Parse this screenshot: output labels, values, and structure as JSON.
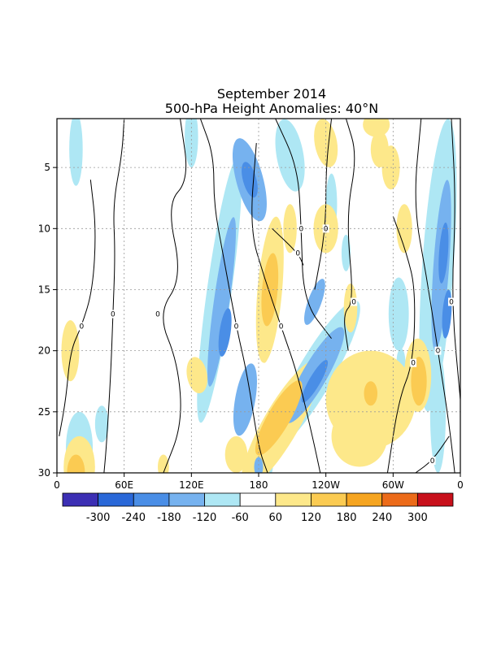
{
  "chart_data": {
    "type": "heatmap",
    "title": "September 2014",
    "subtitle": "500-hPa Height Anomalies: 40°N",
    "xlabel": "",
    "ylabel": "",
    "x_ticks": [
      "0",
      "60E",
      "120E",
      "180",
      "120W",
      "60W",
      "0"
    ],
    "x_range": [
      0,
      360
    ],
    "y_ticks": [
      "5",
      "10",
      "15",
      "20",
      "25",
      "30"
    ],
    "y_range": [
      1,
      30
    ],
    "y_reversed": true,
    "grid": true,
    "contour_label": "0",
    "colorbar": {
      "labels": [
        "-300",
        "-240",
        "-180",
        "-120",
        "-60",
        "60",
        "120",
        "180",
        "240",
        "300"
      ],
      "colors": [
        "#3c2fb4",
        "#2a68d8",
        "#4a8ee6",
        "#76b2ef",
        "#aee7f4",
        "#ffffff",
        "#fde88a",
        "#fbcb52",
        "#f6a521",
        "#ec6b19",
        "#c8101b"
      ]
    },
    "anomaly_blobs": [
      {
        "lon": 17,
        "day": 3.5,
        "rlon": 6,
        "rday": 3,
        "rot": 0,
        "v": -60
      },
      {
        "lon": 120,
        "day": 2.5,
        "rlon": 6,
        "rday": 2.5,
        "rot": 0,
        "v": -60
      },
      {
        "lon": 172,
        "day": 6,
        "rlon": 12,
        "rday": 3.5,
        "rot": -15,
        "v": -120
      },
      {
        "lon": 172,
        "day": 6,
        "rlon": 6,
        "rday": 1.5,
        "rot": -15,
        "v": -180
      },
      {
        "lon": 145,
        "day": 15,
        "rlon": 11,
        "rday": 11,
        "rot": 8,
        "v": -60
      },
      {
        "lon": 147,
        "day": 16,
        "rlon": 7,
        "rday": 7,
        "rot": 8,
        "v": -120
      },
      {
        "lon": 150,
        "day": 18.5,
        "rlon": 5,
        "rday": 2,
        "rot": 8,
        "v": -180
      },
      {
        "lon": 168,
        "day": 24,
        "rlon": 9,
        "rday": 3,
        "rot": 10,
        "v": -120
      },
      {
        "lon": 208,
        "day": 4,
        "rlon": 12,
        "rday": 3,
        "rot": -10,
        "v": -60
      },
      {
        "lon": 230,
        "day": 22,
        "rlon": 16,
        "rday": 7,
        "rot": 30,
        "v": -60
      },
      {
        "lon": 230,
        "day": 22,
        "rlon": 11,
        "rday": 4.5,
        "rot": 30,
        "v": -120
      },
      {
        "lon": 230,
        "day": 22.5,
        "rlon": 5,
        "rday": 2,
        "rot": 30,
        "v": -180
      },
      {
        "lon": 230,
        "day": 16,
        "rlon": 6,
        "rday": 2,
        "rot": 20,
        "v": -120
      },
      {
        "lon": 260,
        "day": 18,
        "rlon": 5,
        "rday": 1.5,
        "rot": 0,
        "v": -60
      },
      {
        "lon": 258,
        "day": 12,
        "rlon": 4,
        "rday": 1.5,
        "rot": 0,
        "v": -60
      },
      {
        "lon": 245,
        "day": 8,
        "rlon": 5,
        "rday": 2.5,
        "rot": 0,
        "v": -60
      },
      {
        "lon": 305,
        "day": 17,
        "rlon": 9,
        "rday": 3,
        "rot": 0,
        "v": -60
      },
      {
        "lon": 307,
        "day": 21,
        "rlon": 4,
        "rday": 1.2,
        "rot": 0,
        "v": -60
      },
      {
        "lon": 340,
        "day": 13,
        "rlon": 14,
        "rday": 12,
        "rot": 4,
        "v": -60
      },
      {
        "lon": 343,
        "day": 13,
        "rlon": 7,
        "rday": 7,
        "rot": 4,
        "v": -120
      },
      {
        "lon": 345,
        "day": 12,
        "rlon": 4,
        "rday": 2.5,
        "rot": 4,
        "v": -180
      },
      {
        "lon": 348,
        "day": 17,
        "rlon": 4,
        "rday": 2,
        "rot": 4,
        "v": -180
      },
      {
        "lon": 340,
        "day": 25,
        "rlon": 7,
        "rday": 5,
        "rot": 0,
        "v": -60
      },
      {
        "lon": 20,
        "day": 28,
        "rlon": 12,
        "rday": 3,
        "rot": 0,
        "v": -60
      },
      {
        "lon": 40,
        "day": 26,
        "rlon": 6,
        "rday": 1.5,
        "rot": 0,
        "v": -60
      },
      {
        "lon": 185,
        "day": 29.2,
        "rlon": 8,
        "rday": 1.5,
        "rot": 0,
        "v": -60
      },
      {
        "lon": 180,
        "day": 29.5,
        "rlon": 4,
        "rday": 0.8,
        "rot": 0,
        "v": -120
      },
      {
        "lon": 240,
        "day": 3,
        "rlon": 10,
        "rday": 2,
        "rot": -10,
        "v": 60
      },
      {
        "lon": 208,
        "day": 10,
        "rlon": 6,
        "rday": 2,
        "rot": 0,
        "v": 60
      },
      {
        "lon": 285,
        "day": 1.5,
        "rlon": 12,
        "rday": 1,
        "rot": 0,
        "v": 60
      },
      {
        "lon": 298,
        "day": 5,
        "rlon": 8,
        "rday": 1.8,
        "rot": 0,
        "v": 60
      },
      {
        "lon": 288,
        "day": 3.5,
        "rlon": 8,
        "rday": 1.5,
        "rot": 0,
        "v": 60
      },
      {
        "lon": 310,
        "day": 10,
        "rlon": 7,
        "rday": 2,
        "rot": 0,
        "v": 60
      },
      {
        "lon": 190,
        "day": 15,
        "rlon": 11,
        "rday": 6,
        "rot": 5,
        "v": 60
      },
      {
        "lon": 190,
        "day": 15,
        "rlon": 7,
        "rday": 3,
        "rot": 5,
        "v": 120
      },
      {
        "lon": 240,
        "day": 10,
        "rlon": 11,
        "rday": 2,
        "rot": 0,
        "v": 60
      },
      {
        "lon": 262,
        "day": 16.5,
        "rlon": 6,
        "rday": 2,
        "rot": 0,
        "v": 60
      },
      {
        "lon": 12,
        "day": 20,
        "rlon": 8,
        "rday": 2.5,
        "rot": 0,
        "v": 60
      },
      {
        "lon": 125,
        "day": 22,
        "rlon": 9,
        "rday": 1.5,
        "rot": -10,
        "v": 60
      },
      {
        "lon": 200,
        "day": 26,
        "rlon": 16,
        "rday": 6,
        "rot": 30,
        "v": 60
      },
      {
        "lon": 198,
        "day": 25.5,
        "rlon": 10,
        "rday": 3.5,
        "rot": 30,
        "v": 120
      },
      {
        "lon": 185,
        "day": 20,
        "rlon": 4,
        "rday": 1,
        "rot": 0,
        "v": 60
      },
      {
        "lon": 160,
        "day": 28.5,
        "rlon": 10,
        "rday": 1.5,
        "rot": 0,
        "v": 60
      },
      {
        "lon": 95,
        "day": 29.5,
        "rlon": 5,
        "rday": 1,
        "rot": 0,
        "v": 60
      },
      {
        "lon": 20,
        "day": 29.5,
        "rlon": 14,
        "rday": 2.5,
        "rot": 0,
        "v": 60
      },
      {
        "lon": 17,
        "day": 30,
        "rlon": 8,
        "rday": 1.5,
        "rot": 0,
        "v": 120
      },
      {
        "lon": 280,
        "day": 24,
        "rlon": 40,
        "rday": 4,
        "rot": 0,
        "v": 60
      },
      {
        "lon": 322,
        "day": 22,
        "rlon": 12,
        "rday": 3,
        "rot": 0,
        "v": 60
      },
      {
        "lon": 323,
        "day": 22.5,
        "rlon": 7,
        "rday": 2,
        "rot": 0,
        "v": 120
      },
      {
        "lon": 270,
        "day": 27,
        "rlon": 25,
        "rday": 2.5,
        "rot": 0,
        "v": 60
      },
      {
        "lon": 280,
        "day": 23.5,
        "rlon": 6,
        "rday": 1,
        "rot": 0,
        "v": 120
      },
      {
        "lon": 262,
        "day": 22,
        "rlon": 7,
        "rday": 1.5,
        "rot": 0,
        "v": 60
      }
    ],
    "zero_contours": [
      [
        [
          60,
          1
        ],
        [
          58,
          4
        ],
        [
          50,
          8
        ],
        [
          52,
          12
        ],
        [
          50,
          17
        ],
        [
          48,
          22
        ],
        [
          44,
          28
        ],
        [
          42,
          30
        ]
      ],
      [
        [
          30,
          6
        ],
        [
          35,
          10
        ],
        [
          32,
          15
        ],
        [
          22,
          18
        ],
        [
          12,
          20
        ],
        [
          8,
          24
        ],
        [
          2,
          27
        ]
      ],
      [
        [
          110,
          1
        ],
        [
          118,
          6
        ],
        [
          98,
          8
        ],
        [
          112,
          14
        ],
        [
          90,
          17
        ],
        [
          108,
          21
        ],
        [
          112,
          26
        ],
        [
          95,
          30
        ]
      ],
      [
        [
          128,
          1
        ],
        [
          140,
          4
        ],
        [
          140,
          8
        ],
        [
          148,
          12
        ],
        [
          160,
          18
        ],
        [
          170,
          22
        ],
        [
          180,
          28
        ],
        [
          188,
          30
        ]
      ],
      [
        [
          178,
          3
        ],
        [
          172,
          10
        ],
        [
          185,
          14
        ],
        [
          200,
          18
        ],
        [
          215,
          22
        ],
        [
          228,
          27
        ],
        [
          235,
          30
        ]
      ],
      [
        [
          195,
          1
        ],
        [
          215,
          5
        ],
        [
          218,
          10
        ],
        [
          220,
          16
        ],
        [
          245,
          19
        ]
      ],
      [
        [
          192,
          10
        ],
        [
          215,
          12
        ],
        [
          220,
          13
        ]
      ],
      [
        [
          245,
          1
        ],
        [
          240,
          5
        ],
        [
          240,
          10
        ],
        [
          230,
          15
        ]
      ],
      [
        [
          258,
          1
        ],
        [
          268,
          4
        ],
        [
          258,
          9
        ],
        [
          265,
          16
        ],
        [
          255,
          17
        ],
        [
          260,
          20
        ]
      ],
      [
        [
          300,
          9
        ],
        [
          312,
          12
        ],
        [
          320,
          15
        ],
        [
          318,
          21
        ],
        [
          305,
          24
        ],
        [
          295,
          30
        ]
      ],
      [
        [
          325,
          1
        ],
        [
          318,
          8
        ],
        [
          330,
          14
        ],
        [
          340,
          20
        ],
        [
          350,
          26
        ],
        [
          355,
          30
        ]
      ],
      [
        [
          352,
          1
        ],
        [
          356,
          8
        ],
        [
          352,
          16
        ],
        [
          360,
          24
        ]
      ],
      [
        [
          350,
          27
        ],
        [
          335,
          29
        ],
        [
          320,
          30
        ]
      ]
    ]
  }
}
